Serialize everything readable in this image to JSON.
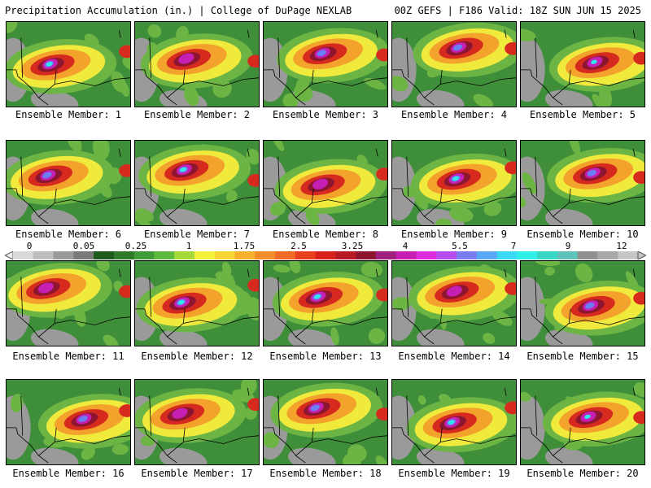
{
  "header": {
    "left": "Precipitation Accumulation (in.) | College of DuPage NEXLAB",
    "right": "00Z GEFS | F186 Valid: 18Z SUN JUN 15 2025"
  },
  "label_prefix": "Ensemble Member: ",
  "members": [
    1,
    2,
    3,
    4,
    5,
    6,
    7,
    8,
    9,
    10,
    11,
    12,
    13,
    14,
    15,
    16,
    17,
    18,
    19,
    20
  ],
  "colorbar": {
    "ticks": [
      "0",
      "0.05",
      "0.25",
      "1",
      "1.75",
      "2.5",
      "3.25",
      "4",
      "5.5",
      "7",
      "9",
      "12"
    ],
    "colors": [
      "#d8d8d8",
      "#bdbdbd",
      "#9a9a9a",
      "#7a7a7a",
      "#1f5a1d",
      "#2f7a2a",
      "#3f9a38",
      "#5fb93c",
      "#a6d83a",
      "#f2f23a",
      "#f7d530",
      "#f8b02c",
      "#f48c28",
      "#ef6a25",
      "#e8401f",
      "#d8201c",
      "#b81a25",
      "#8e1530",
      "#a0207f",
      "#c51fb3",
      "#de2ddf",
      "#b44cf0",
      "#7a7cf3",
      "#5aa8f3",
      "#3ad8f3",
      "#2ef0e8",
      "#39d8c6",
      "#5fc2b8",
      "#909090",
      "#a8a8a8",
      "#c6c6c6"
    ]
  },
  "map_colors": {
    "green": "#3f8f3a",
    "light_green": "#6cb443",
    "gray": "#9a9a9a",
    "yellow": "#f0ea3c",
    "orange": "#f3a22b",
    "red": "#d62a1f",
    "dark_red": "#8e1530",
    "magenta": "#c51fb3",
    "blue": "#6a7ff2",
    "cyan": "#33e6ee"
  }
}
